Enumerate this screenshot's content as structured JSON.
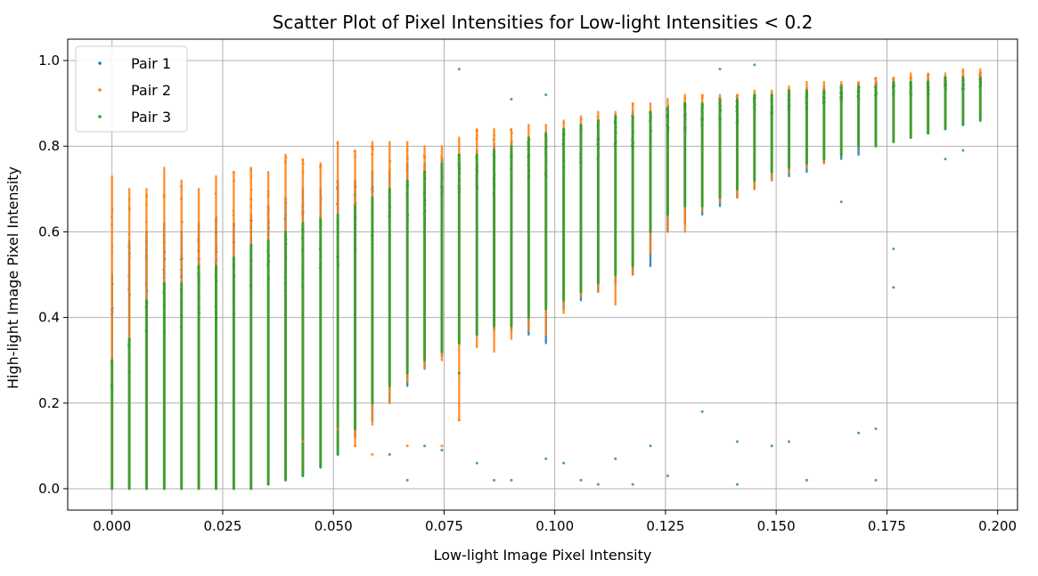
{
  "chart_data": {
    "type": "scatter",
    "title": "Scatter Plot of Pixel Intensities for Low-light Intensities < 0.2",
    "xlabel": "Low-light Image Pixel Intensity",
    "ylabel": "High-light Image Pixel Intensity",
    "xlim": [
      -0.01,
      0.2045
    ],
    "ylim": [
      -0.05,
      1.05
    ],
    "xticks": [
      0.0,
      0.025,
      0.05,
      0.075,
      0.1,
      0.125,
      0.15,
      0.175,
      0.2
    ],
    "xtick_labels": [
      "0.000",
      "0.025",
      "0.050",
      "0.075",
      "0.100",
      "0.125",
      "0.150",
      "0.175",
      "0.200"
    ],
    "yticks": [
      0.0,
      0.2,
      0.4,
      0.6,
      0.8,
      1.0
    ],
    "ytick_labels": [
      "0.0",
      "0.2",
      "0.4",
      "0.6",
      "0.8",
      "1.0"
    ],
    "grid": true,
    "legend_position": "upper-left",
    "colors": {
      "Pair 1": "#1f77b4",
      "Pair 2": "#ff7f0e",
      "Pair 3": "#2ca02c"
    },
    "series": [
      {
        "name": "Pair 1",
        "color": "#1f77b4",
        "columns": [
          {
            "x": 0.0,
            "ymin": 0.0,
            "ymax": 0.5
          },
          {
            "x": 0.0039,
            "ymin": 0.0,
            "ymax": 0.58
          },
          {
            "x": 0.0078,
            "ymin": 0.0,
            "ymax": 0.6
          },
          {
            "x": 0.0118,
            "ymin": 0.0,
            "ymax": 0.62
          },
          {
            "x": 0.0157,
            "ymin": 0.0,
            "ymax": 0.6
          },
          {
            "x": 0.0196,
            "ymin": 0.0,
            "ymax": 0.62
          },
          {
            "x": 0.0235,
            "ymin": 0.0,
            "ymax": 0.63
          },
          {
            "x": 0.0275,
            "ymin": 0.0,
            "ymax": 0.62
          },
          {
            "x": 0.0314,
            "ymin": 0.0,
            "ymax": 0.64
          },
          {
            "x": 0.0353,
            "ymin": 0.01,
            "ymax": 0.66
          },
          {
            "x": 0.0392,
            "ymin": 0.02,
            "ymax": 0.68
          },
          {
            "x": 0.0431,
            "ymin": 0.03,
            "ymax": 0.7
          },
          {
            "x": 0.0471,
            "ymin": 0.05,
            "ymax": 0.7
          },
          {
            "x": 0.051,
            "ymin": 0.08,
            "ymax": 0.72
          },
          {
            "x": 0.0549,
            "ymin": 0.12,
            "ymax": 0.72
          },
          {
            "x": 0.0588,
            "ymin": 0.16,
            "ymax": 0.74
          },
          {
            "x": 0.0627,
            "ymin": 0.2,
            "ymax": 0.74
          },
          {
            "x": 0.0667,
            "ymin": 0.24,
            "ymax": 0.76
          },
          {
            "x": 0.0706,
            "ymin": 0.28,
            "ymax": 0.76
          },
          {
            "x": 0.0745,
            "ymin": 0.31,
            "ymax": 0.77
          },
          {
            "x": 0.0784,
            "ymin": 0.34,
            "ymax": 0.78
          },
          {
            "x": 0.0824,
            "ymin": 0.36,
            "ymax": 0.79
          },
          {
            "x": 0.0863,
            "ymin": 0.37,
            "ymax": 0.8
          },
          {
            "x": 0.0902,
            "ymin": 0.37,
            "ymax": 0.81
          },
          {
            "x": 0.0941,
            "ymin": 0.36,
            "ymax": 0.82
          },
          {
            "x": 0.098,
            "ymin": 0.34,
            "ymax": 0.83
          },
          {
            "x": 0.102,
            "ymin": 0.42,
            "ymax": 0.84
          },
          {
            "x": 0.1059,
            "ymin": 0.44,
            "ymax": 0.85
          },
          {
            "x": 0.1098,
            "ymin": 0.46,
            "ymax": 0.86
          },
          {
            "x": 0.1137,
            "ymin": 0.48,
            "ymax": 0.87
          },
          {
            "x": 0.1176,
            "ymin": 0.5,
            "ymax": 0.88
          },
          {
            "x": 0.1216,
            "ymin": 0.52,
            "ymax": 0.88
          },
          {
            "x": 0.1255,
            "ymin": 0.6,
            "ymax": 0.89
          },
          {
            "x": 0.1294,
            "ymin": 0.62,
            "ymax": 0.9
          },
          {
            "x": 0.1333,
            "ymin": 0.64,
            "ymax": 0.9
          },
          {
            "x": 0.1373,
            "ymin": 0.66,
            "ymax": 0.91
          },
          {
            "x": 0.1412,
            "ymin": 0.68,
            "ymax": 0.91
          },
          {
            "x": 0.1451,
            "ymin": 0.7,
            "ymax": 0.92
          },
          {
            "x": 0.149,
            "ymin": 0.72,
            "ymax": 0.92
          },
          {
            "x": 0.1529,
            "ymin": 0.73,
            "ymax": 0.93
          },
          {
            "x": 0.1569,
            "ymin": 0.74,
            "ymax": 0.93
          },
          {
            "x": 0.1608,
            "ymin": 0.76,
            "ymax": 0.94
          },
          {
            "x": 0.1647,
            "ymin": 0.77,
            "ymax": 0.94
          },
          {
            "x": 0.1686,
            "ymin": 0.78,
            "ymax": 0.94
          },
          {
            "x": 0.1725,
            "ymin": 0.8,
            "ymax": 0.95
          },
          {
            "x": 0.1765,
            "ymin": 0.81,
            "ymax": 0.95
          },
          {
            "x": 0.1804,
            "ymin": 0.82,
            "ymax": 0.95
          },
          {
            "x": 0.1843,
            "ymin": 0.83,
            "ymax": 0.96
          },
          {
            "x": 0.1882,
            "ymin": 0.84,
            "ymax": 0.96
          },
          {
            "x": 0.1922,
            "ymin": 0.85,
            "ymax": 0.96
          },
          {
            "x": 0.1961,
            "ymin": 0.86,
            "ymax": 0.97
          }
        ]
      },
      {
        "name": "Pair 2",
        "color": "#ff7f0e",
        "columns": [
          {
            "x": 0.0,
            "ymin": 0.0,
            "ymax": 0.73
          },
          {
            "x": 0.0039,
            "ymin": 0.0,
            "ymax": 0.7
          },
          {
            "x": 0.0078,
            "ymin": 0.0,
            "ymax": 0.7
          },
          {
            "x": 0.0118,
            "ymin": 0.0,
            "ymax": 0.75
          },
          {
            "x": 0.0157,
            "ymin": 0.0,
            "ymax": 0.72
          },
          {
            "x": 0.0196,
            "ymin": 0.0,
            "ymax": 0.7
          },
          {
            "x": 0.0235,
            "ymin": 0.0,
            "ymax": 0.73
          },
          {
            "x": 0.0275,
            "ymin": 0.0,
            "ymax": 0.74
          },
          {
            "x": 0.0314,
            "ymin": 0.0,
            "ymax": 0.75
          },
          {
            "x": 0.0353,
            "ymin": 0.01,
            "ymax": 0.74
          },
          {
            "x": 0.0392,
            "ymin": 0.03,
            "ymax": 0.78
          },
          {
            "x": 0.0431,
            "ymin": 0.04,
            "ymax": 0.77
          },
          {
            "x": 0.0471,
            "ymin": 0.06,
            "ymax": 0.76
          },
          {
            "x": 0.051,
            "ymin": 0.1,
            "ymax": 0.81
          },
          {
            "x": 0.0549,
            "ymin": 0.1,
            "ymax": 0.79
          },
          {
            "x": 0.0588,
            "ymin": 0.15,
            "ymax": 0.81
          },
          {
            "x": 0.0627,
            "ymin": 0.2,
            "ymax": 0.81
          },
          {
            "x": 0.0667,
            "ymin": 0.25,
            "ymax": 0.81
          },
          {
            "x": 0.0706,
            "ymin": 0.28,
            "ymax": 0.8
          },
          {
            "x": 0.0745,
            "ymin": 0.3,
            "ymax": 0.8
          },
          {
            "x": 0.0784,
            "ymin": 0.16,
            "ymax": 0.82
          },
          {
            "x": 0.0824,
            "ymin": 0.33,
            "ymax": 0.84
          },
          {
            "x": 0.0863,
            "ymin": 0.32,
            "ymax": 0.84
          },
          {
            "x": 0.0902,
            "ymin": 0.35,
            "ymax": 0.84
          },
          {
            "x": 0.0941,
            "ymin": 0.37,
            "ymax": 0.85
          },
          {
            "x": 0.098,
            "ymin": 0.36,
            "ymax": 0.85
          },
          {
            "x": 0.102,
            "ymin": 0.41,
            "ymax": 0.86
          },
          {
            "x": 0.1059,
            "ymin": 0.45,
            "ymax": 0.87
          },
          {
            "x": 0.1098,
            "ymin": 0.46,
            "ymax": 0.88
          },
          {
            "x": 0.1137,
            "ymin": 0.43,
            "ymax": 0.88
          },
          {
            "x": 0.1176,
            "ymin": 0.5,
            "ymax": 0.9
          },
          {
            "x": 0.1216,
            "ymin": 0.55,
            "ymax": 0.9
          },
          {
            "x": 0.1255,
            "ymin": 0.6,
            "ymax": 0.91
          },
          {
            "x": 0.1294,
            "ymin": 0.6,
            "ymax": 0.92
          },
          {
            "x": 0.1333,
            "ymin": 0.65,
            "ymax": 0.92
          },
          {
            "x": 0.1373,
            "ymin": 0.67,
            "ymax": 0.92
          },
          {
            "x": 0.1412,
            "ymin": 0.68,
            "ymax": 0.92
          },
          {
            "x": 0.1451,
            "ymin": 0.7,
            "ymax": 0.93
          },
          {
            "x": 0.149,
            "ymin": 0.72,
            "ymax": 0.93
          },
          {
            "x": 0.1529,
            "ymin": 0.74,
            "ymax": 0.94
          },
          {
            "x": 0.1569,
            "ymin": 0.75,
            "ymax": 0.95
          },
          {
            "x": 0.1608,
            "ymin": 0.76,
            "ymax": 0.95
          },
          {
            "x": 0.1647,
            "ymin": 0.78,
            "ymax": 0.95
          },
          {
            "x": 0.1686,
            "ymin": 0.8,
            "ymax": 0.95
          },
          {
            "x": 0.1725,
            "ymin": 0.8,
            "ymax": 0.96
          },
          {
            "x": 0.1765,
            "ymin": 0.81,
            "ymax": 0.96
          },
          {
            "x": 0.1804,
            "ymin": 0.82,
            "ymax": 0.97
          },
          {
            "x": 0.1843,
            "ymin": 0.84,
            "ymax": 0.97
          },
          {
            "x": 0.1882,
            "ymin": 0.85,
            "ymax": 0.97
          },
          {
            "x": 0.1922,
            "ymin": 0.86,
            "ymax": 0.98
          },
          {
            "x": 0.1961,
            "ymin": 0.87,
            "ymax": 0.98
          }
        ]
      },
      {
        "name": "Pair 3",
        "color": "#2ca02c",
        "columns": [
          {
            "x": 0.0,
            "ymin": 0.0,
            "ymax": 0.3
          },
          {
            "x": 0.0039,
            "ymin": 0.0,
            "ymax": 0.35
          },
          {
            "x": 0.0078,
            "ymin": 0.0,
            "ymax": 0.44
          },
          {
            "x": 0.0118,
            "ymin": 0.0,
            "ymax": 0.48
          },
          {
            "x": 0.0157,
            "ymin": 0.0,
            "ymax": 0.48
          },
          {
            "x": 0.0196,
            "ymin": 0.0,
            "ymax": 0.52
          },
          {
            "x": 0.0235,
            "ymin": 0.0,
            "ymax": 0.52
          },
          {
            "x": 0.0275,
            "ymin": 0.0,
            "ymax": 0.54
          },
          {
            "x": 0.0314,
            "ymin": 0.0,
            "ymax": 0.57
          },
          {
            "x": 0.0353,
            "ymin": 0.01,
            "ymax": 0.58
          },
          {
            "x": 0.0392,
            "ymin": 0.02,
            "ymax": 0.6
          },
          {
            "x": 0.0431,
            "ymin": 0.03,
            "ymax": 0.62
          },
          {
            "x": 0.0471,
            "ymin": 0.05,
            "ymax": 0.63
          },
          {
            "x": 0.051,
            "ymin": 0.08,
            "ymax": 0.64
          },
          {
            "x": 0.0549,
            "ymin": 0.14,
            "ymax": 0.66
          },
          {
            "x": 0.0588,
            "ymin": 0.2,
            "ymax": 0.68
          },
          {
            "x": 0.0627,
            "ymin": 0.24,
            "ymax": 0.7
          },
          {
            "x": 0.0667,
            "ymin": 0.27,
            "ymax": 0.72
          },
          {
            "x": 0.0706,
            "ymin": 0.3,
            "ymax": 0.74
          },
          {
            "x": 0.0745,
            "ymin": 0.32,
            "ymax": 0.76
          },
          {
            "x": 0.0784,
            "ymin": 0.34,
            "ymax": 0.78
          },
          {
            "x": 0.0824,
            "ymin": 0.36,
            "ymax": 0.78
          },
          {
            "x": 0.0863,
            "ymin": 0.38,
            "ymax": 0.79
          },
          {
            "x": 0.0902,
            "ymin": 0.38,
            "ymax": 0.8
          },
          {
            "x": 0.0941,
            "ymin": 0.4,
            "ymax": 0.82
          },
          {
            "x": 0.098,
            "ymin": 0.42,
            "ymax": 0.83
          },
          {
            "x": 0.102,
            "ymin": 0.44,
            "ymax": 0.84
          },
          {
            "x": 0.1059,
            "ymin": 0.46,
            "ymax": 0.85
          },
          {
            "x": 0.1098,
            "ymin": 0.48,
            "ymax": 0.86
          },
          {
            "x": 0.1137,
            "ymin": 0.5,
            "ymax": 0.87
          },
          {
            "x": 0.1176,
            "ymin": 0.52,
            "ymax": 0.87
          },
          {
            "x": 0.1216,
            "ymin": 0.6,
            "ymax": 0.88
          },
          {
            "x": 0.1255,
            "ymin": 0.64,
            "ymax": 0.89
          },
          {
            "x": 0.1294,
            "ymin": 0.66,
            "ymax": 0.9
          },
          {
            "x": 0.1333,
            "ymin": 0.66,
            "ymax": 0.9
          },
          {
            "x": 0.1373,
            "ymin": 0.68,
            "ymax": 0.91
          },
          {
            "x": 0.1412,
            "ymin": 0.7,
            "ymax": 0.91
          },
          {
            "x": 0.1451,
            "ymin": 0.72,
            "ymax": 0.92
          },
          {
            "x": 0.149,
            "ymin": 0.74,
            "ymax": 0.92
          },
          {
            "x": 0.1529,
            "ymin": 0.75,
            "ymax": 0.93
          },
          {
            "x": 0.1569,
            "ymin": 0.76,
            "ymax": 0.93
          },
          {
            "x": 0.1608,
            "ymin": 0.77,
            "ymax": 0.93
          },
          {
            "x": 0.1647,
            "ymin": 0.78,
            "ymax": 0.94
          },
          {
            "x": 0.1686,
            "ymin": 0.8,
            "ymax": 0.94
          },
          {
            "x": 0.1725,
            "ymin": 0.8,
            "ymax": 0.94
          },
          {
            "x": 0.1765,
            "ymin": 0.81,
            "ymax": 0.95
          },
          {
            "x": 0.1804,
            "ymin": 0.82,
            "ymax": 0.95
          },
          {
            "x": 0.1843,
            "ymin": 0.83,
            "ymax": 0.95
          },
          {
            "x": 0.1882,
            "ymin": 0.84,
            "ymax": 0.96
          },
          {
            "x": 0.1922,
            "ymin": 0.85,
            "ymax": 0.96
          },
          {
            "x": 0.1961,
            "ymin": 0.86,
            "ymax": 0.96
          }
        ],
        "outliers": [
          [
            0.0784,
            0.98
          ],
          [
            0.0902,
            0.91
          ],
          [
            0.098,
            0.92
          ],
          [
            0.1373,
            0.98
          ],
          [
            0.1451,
            0.99
          ],
          [
            0.1765,
            0.56
          ],
          [
            0.1765,
            0.47
          ],
          [
            0.1647,
            0.67
          ],
          [
            0.1882,
            0.77
          ],
          [
            0.1922,
            0.79
          ],
          [
            0.0784,
            0.27
          ],
          [
            0.0706,
            0.1
          ],
          [
            0.0745,
            0.09
          ],
          [
            0.0824,
            0.06
          ],
          [
            0.0863,
            0.02
          ],
          [
            0.0902,
            0.02
          ],
          [
            0.098,
            0.07
          ],
          [
            0.102,
            0.06
          ],
          [
            0.1059,
            0.02
          ],
          [
            0.1098,
            0.01
          ],
          [
            0.1137,
            0.07
          ],
          [
            0.1176,
            0.01
          ],
          [
            0.1216,
            0.1
          ],
          [
            0.1255,
            0.03
          ],
          [
            0.1333,
            0.18
          ],
          [
            0.1412,
            0.11
          ],
          [
            0.1412,
            0.01
          ],
          [
            0.149,
            0.1
          ],
          [
            0.1529,
            0.11
          ],
          [
            0.1569,
            0.02
          ],
          [
            0.1686,
            0.13
          ],
          [
            0.1725,
            0.14
          ],
          [
            0.1725,
            0.02
          ],
          [
            0.0667,
            0.02
          ],
          [
            0.0627,
            0.08
          ]
        ],
        "outlier_note": null
      }
    ],
    "pair2_outliers": [
      [
        0.0784,
        0.16
      ],
      [
        0.0549,
        0.1
      ],
      [
        0.0588,
        0.08
      ],
      [
        0.0667,
        0.1
      ],
      [
        0.0745,
        0.1
      ],
      [
        0.0431,
        0.11
      ],
      [
        0.051,
        0.14
      ]
    ]
  }
}
